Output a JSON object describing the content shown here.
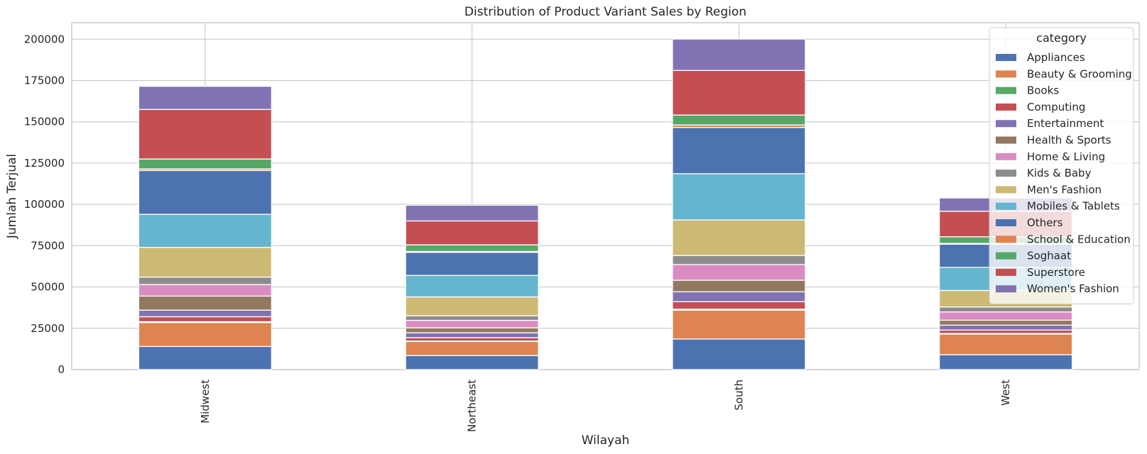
{
  "chart_data": {
    "type": "bar",
    "stacked": true,
    "title": "Distribution of Product Variant Sales by Region",
    "xlabel": "Wilayah",
    "ylabel": "Jumlah Terjual",
    "ylim": [
      0,
      210000
    ],
    "yticks": [
      0,
      25000,
      50000,
      75000,
      100000,
      125000,
      150000,
      175000,
      200000
    ],
    "ytick_labels": [
      "0",
      "25000",
      "50000",
      "75000",
      "100000",
      "125000",
      "150000",
      "175000",
      "200000"
    ],
    "grid": true,
    "categories": [
      "Midwest",
      "Northeast",
      "South",
      "West"
    ],
    "legend": {
      "title": "category",
      "position": "top-right"
    },
    "series": [
      {
        "name": "Appliances",
        "color": "#4c72b0",
        "values": [
          14000,
          8500,
          18500,
          9000
        ]
      },
      {
        "name": "Beauty & Grooming",
        "color": "#dd8452",
        "values": [
          14500,
          8500,
          17500,
          12500
        ]
      },
      {
        "name": "Books",
        "color": "#55a868",
        "values": [
          500,
          300,
          600,
          400
        ]
      },
      {
        "name": "Computing",
        "color": "#c44e52",
        "values": [
          3000,
          2000,
          4500,
          2000
        ]
      },
      {
        "name": "Entertainment",
        "color": "#8172b3",
        "values": [
          4000,
          3000,
          6000,
          3000
        ]
      },
      {
        "name": "Health & Sports",
        "color": "#937860",
        "values": [
          8500,
          3000,
          7000,
          3000
        ]
      },
      {
        "name": "Home & Living",
        "color": "#da8bc3",
        "values": [
          7000,
          4500,
          9500,
          5000
        ]
      },
      {
        "name": "Kids & Baby",
        "color": "#8c8c8c",
        "values": [
          4500,
          2800,
          5500,
          3000
        ]
      },
      {
        "name": "Men's Fashion",
        "color": "#ccb974",
        "values": [
          18000,
          11400,
          21500,
          10000
        ]
      },
      {
        "name": "Mobiles & Tablets",
        "color": "#64b5cd",
        "values": [
          20000,
          13000,
          28000,
          14000
        ]
      },
      {
        "name": "Others",
        "color": "#4c72b0",
        "values": [
          26500,
          14000,
          28000,
          14000
        ]
      },
      {
        "name": "School & Education",
        "color": "#dd8452",
        "values": [
          1000,
          500,
          1500,
          500
        ]
      },
      {
        "name": "Soghaat",
        "color": "#55a868",
        "values": [
          6000,
          4000,
          6000,
          4000
        ]
      },
      {
        "name": "Superstore",
        "color": "#c44e52",
        "values": [
          30000,
          14500,
          27000,
          15500
        ]
      },
      {
        "name": "Women's Fashion",
        "color": "#8172b3",
        "values": [
          14000,
          9500,
          19000,
          8000
        ]
      }
    ]
  }
}
